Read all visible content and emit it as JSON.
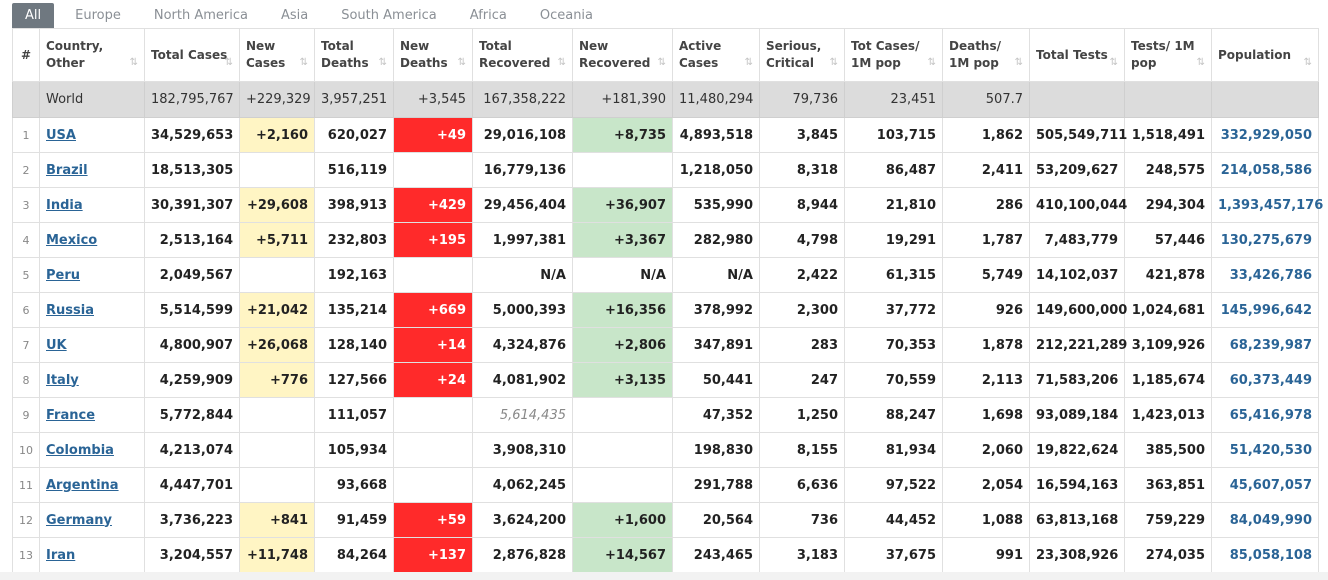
{
  "tabs": [
    "All",
    "Europe",
    "North America",
    "Asia",
    "South America",
    "Africa",
    "Oceania"
  ],
  "columns": [
    {
      "label": "#"
    },
    {
      "label": "Country, Other"
    },
    {
      "label": "Total Cases"
    },
    {
      "label": "New Cases"
    },
    {
      "label": "Total Deaths"
    },
    {
      "label": "New Deaths"
    },
    {
      "label": "Total Recovered"
    },
    {
      "label": "New Recovered"
    },
    {
      "label": "Active Cases"
    },
    {
      "label": "Serious, Critical"
    },
    {
      "label": "Tot Cases/ 1M pop"
    },
    {
      "label": "Deaths/ 1M pop"
    },
    {
      "label": "Total Tests"
    },
    {
      "label": "Tests/ 1M pop"
    },
    {
      "label": "Population"
    }
  ],
  "world": {
    "name": "World",
    "total_cases": "182,795,767",
    "new_cases": "+229,329",
    "total_deaths": "3,957,251",
    "new_deaths": "+3,545",
    "total_recovered": "167,358,222",
    "new_recovered": "+181,390",
    "active_cases": "11,480,294",
    "serious": "79,736",
    "cases_per_m": "23,451",
    "deaths_per_m": "507.7",
    "total_tests": "",
    "tests_per_m": "",
    "population": ""
  },
  "rows": [
    {
      "rank": "1",
      "country": "USA",
      "total_cases": "34,529,653",
      "new_cases": "+2,160",
      "total_deaths": "620,027",
      "new_deaths": "+49",
      "total_recovered": "29,016,108",
      "new_recovered": "+8,735",
      "active_cases": "4,893,518",
      "serious": "3,845",
      "cases_per_m": "103,715",
      "deaths_per_m": "1,862",
      "total_tests": "505,549,711",
      "tests_per_m": "1,518,491",
      "population": "332,929,050"
    },
    {
      "rank": "2",
      "country": "Brazil",
      "total_cases": "18,513,305",
      "new_cases": "",
      "total_deaths": "516,119",
      "new_deaths": "",
      "total_recovered": "16,779,136",
      "new_recovered": "",
      "active_cases": "1,218,050",
      "serious": "8,318",
      "cases_per_m": "86,487",
      "deaths_per_m": "2,411",
      "total_tests": "53,209,627",
      "tests_per_m": "248,575",
      "population": "214,058,586"
    },
    {
      "rank": "3",
      "country": "India",
      "total_cases": "30,391,307",
      "new_cases": "+29,608",
      "total_deaths": "398,913",
      "new_deaths": "+429",
      "total_recovered": "29,456,404",
      "new_recovered": "+36,907",
      "active_cases": "535,990",
      "serious": "8,944",
      "cases_per_m": "21,810",
      "deaths_per_m": "286",
      "total_tests": "410,100,044",
      "tests_per_m": "294,304",
      "population": "1,393,457,176"
    },
    {
      "rank": "4",
      "country": "Mexico",
      "total_cases": "2,513,164",
      "new_cases": "+5,711",
      "total_deaths": "232,803",
      "new_deaths": "+195",
      "total_recovered": "1,997,381",
      "new_recovered": "+3,367",
      "active_cases": "282,980",
      "serious": "4,798",
      "cases_per_m": "19,291",
      "deaths_per_m": "1,787",
      "total_tests": "7,483,779",
      "tests_per_m": "57,446",
      "population": "130,275,679"
    },
    {
      "rank": "5",
      "country": "Peru",
      "total_cases": "2,049,567",
      "new_cases": "",
      "total_deaths": "192,163",
      "new_deaths": "",
      "total_recovered": "N/A",
      "new_recovered": "N/A",
      "active_cases": "N/A",
      "serious": "2,422",
      "cases_per_m": "61,315",
      "deaths_per_m": "5,749",
      "total_tests": "14,102,037",
      "tests_per_m": "421,878",
      "population": "33,426,786"
    },
    {
      "rank": "6",
      "country": "Russia",
      "total_cases": "5,514,599",
      "new_cases": "+21,042",
      "total_deaths": "135,214",
      "new_deaths": "+669",
      "total_recovered": "5,000,393",
      "new_recovered": "+16,356",
      "active_cases": "378,992",
      "serious": "2,300",
      "cases_per_m": "37,772",
      "deaths_per_m": "926",
      "total_tests": "149,600,000",
      "tests_per_m": "1,024,681",
      "population": "145,996,642"
    },
    {
      "rank": "7",
      "country": "UK",
      "total_cases": "4,800,907",
      "new_cases": "+26,068",
      "total_deaths": "128,140",
      "new_deaths": "+14",
      "total_recovered": "4,324,876",
      "new_recovered": "+2,806",
      "active_cases": "347,891",
      "serious": "283",
      "cases_per_m": "70,353",
      "deaths_per_m": "1,878",
      "total_tests": "212,221,289",
      "tests_per_m": "3,109,926",
      "population": "68,239,987"
    },
    {
      "rank": "8",
      "country": "Italy",
      "total_cases": "4,259,909",
      "new_cases": "+776",
      "total_deaths": "127,566",
      "new_deaths": "+24",
      "total_recovered": "4,081,902",
      "new_recovered": "+3,135",
      "active_cases": "50,441",
      "serious": "247",
      "cases_per_m": "70,559",
      "deaths_per_m": "2,113",
      "total_tests": "71,583,206",
      "tests_per_m": "1,185,674",
      "population": "60,373,449"
    },
    {
      "rank": "9",
      "country": "France",
      "total_cases": "5,772,844",
      "new_cases": "",
      "total_deaths": "111,057",
      "new_deaths": "",
      "total_recovered": "5,614,435",
      "new_recovered": "",
      "active_cases": "47,352",
      "serious": "1,250",
      "cases_per_m": "88,247",
      "deaths_per_m": "1,698",
      "total_tests": "93,089,184",
      "tests_per_m": "1,423,013",
      "population": "65,416,978"
    },
    {
      "rank": "10",
      "country": "Colombia",
      "total_cases": "4,213,074",
      "new_cases": "",
      "total_deaths": "105,934",
      "new_deaths": "",
      "total_recovered": "3,908,310",
      "new_recovered": "",
      "active_cases": "198,830",
      "serious": "8,155",
      "cases_per_m": "81,934",
      "deaths_per_m": "2,060",
      "total_tests": "19,822,624",
      "tests_per_m": "385,500",
      "population": "51,420,530"
    },
    {
      "rank": "11",
      "country": "Argentina",
      "total_cases": "4,447,701",
      "new_cases": "",
      "total_deaths": "93,668",
      "new_deaths": "",
      "total_recovered": "4,062,245",
      "new_recovered": "",
      "active_cases": "291,788",
      "serious": "6,636",
      "cases_per_m": "97,522",
      "deaths_per_m": "2,054",
      "total_tests": "16,594,163",
      "tests_per_m": "363,851",
      "population": "45,607,057"
    },
    {
      "rank": "12",
      "country": "Germany",
      "total_cases": "3,736,223",
      "new_cases": "+841",
      "total_deaths": "91,459",
      "new_deaths": "+59",
      "total_recovered": "3,624,200",
      "new_recovered": "+1,600",
      "active_cases": "20,564",
      "serious": "736",
      "cases_per_m": "44,452",
      "deaths_per_m": "1,088",
      "total_tests": "63,813,168",
      "tests_per_m": "759,229",
      "population": "84,049,990"
    },
    {
      "rank": "13",
      "country": "Iran",
      "total_cases": "3,204,557",
      "new_cases": "+11,748",
      "total_deaths": "84,264",
      "new_deaths": "+137",
      "total_recovered": "2,876,828",
      "new_recovered": "+14,567",
      "active_cases": "243,465",
      "serious": "3,183",
      "cases_per_m": "37,675",
      "deaths_per_m": "991",
      "total_tests": "23,308,926",
      "tests_per_m": "274,035",
      "population": "85,058,108"
    }
  ],
  "colors": {
    "active_tab": "#6f7880",
    "new_cases_bg": "#fff5c4",
    "new_deaths_bg": "#ff2a2a",
    "new_recovered_bg": "#c8e6c9",
    "link": "#2a6496"
  },
  "icons": {
    "sort": "sort-icon"
  }
}
